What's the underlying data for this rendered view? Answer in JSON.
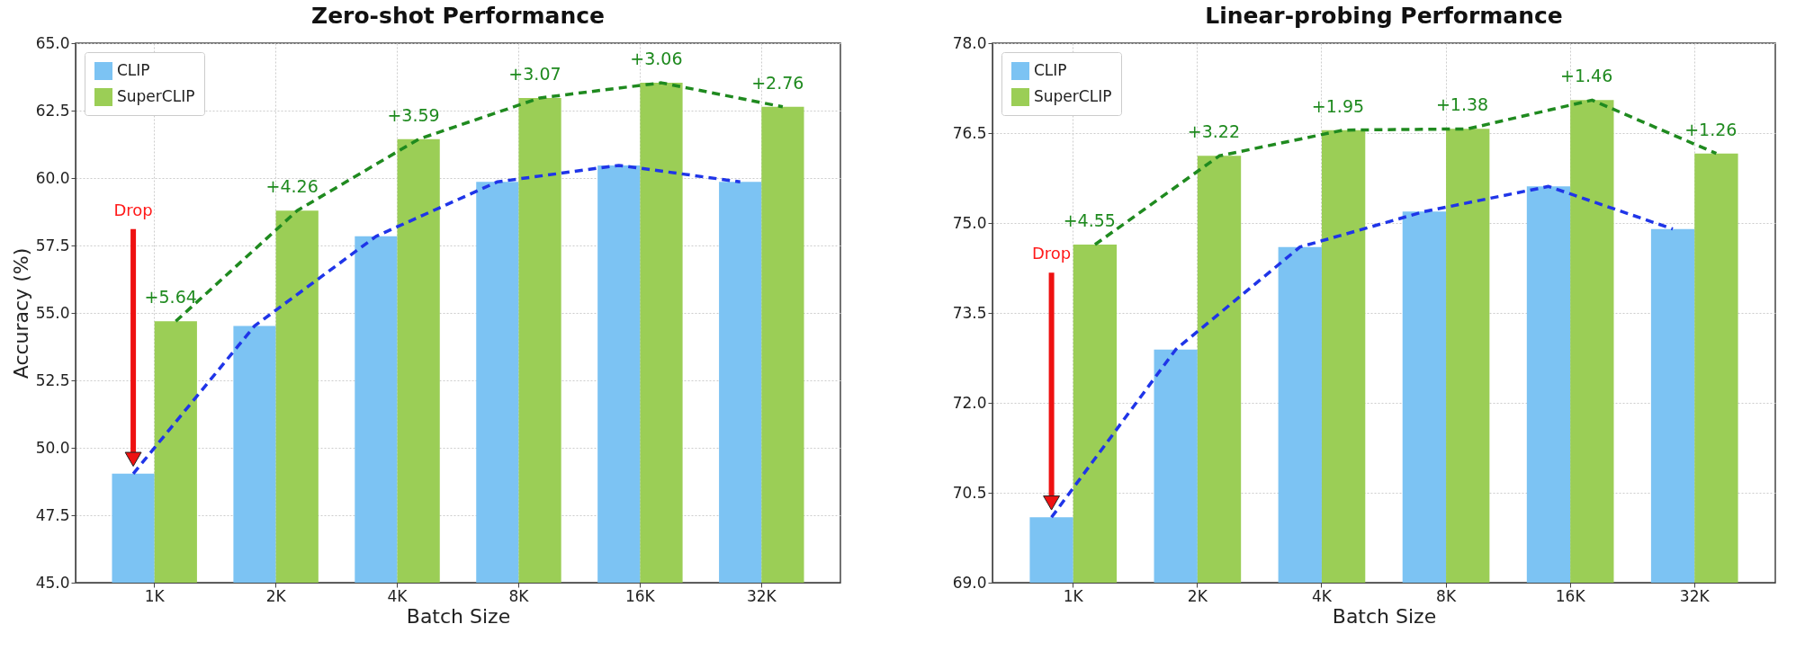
{
  "chart_data": [
    {
      "type": "bar",
      "title": "Zero-shot Performance",
      "xlabel": "Batch Size",
      "ylabel": "Accuracy (%)",
      "categories": [
        "1K",
        "2K",
        "4K",
        "8K",
        "16K",
        "32K"
      ],
      "series": [
        {
          "name": "CLIP",
          "color": "#7cc3f3",
          "values": [
            49.04,
            54.52,
            57.84,
            59.86,
            60.47,
            59.86
          ]
        },
        {
          "name": "SuperCLIP",
          "color": "#9bce56",
          "values": [
            54.69,
            58.79,
            61.44,
            62.97,
            63.53,
            62.64
          ]
        },
        {
          "type": "line",
          "color": "#1f35e8",
          "values": [
            49.04,
            54.52,
            57.84,
            59.86,
            60.47,
            59.86
          ]
        },
        {
          "type": "line",
          "color": "#1f8a1f",
          "values": [
            54.69,
            58.79,
            61.44,
            62.97,
            63.53,
            62.64
          ]
        }
      ],
      "line_style": "dashed",
      "ylim": [
        45,
        65
      ],
      "yticks": [
        {
          "value": 45,
          "label": "45.0"
        },
        {
          "value": 47.5,
          "label": "47.5"
        },
        {
          "value": 50,
          "label": "50.0"
        },
        {
          "value": 52.5,
          "label": "52.5"
        },
        {
          "value": 55,
          "label": "55.0"
        },
        {
          "value": 57.5,
          "label": "57.5"
        },
        {
          "value": 60,
          "label": "60.0"
        },
        {
          "value": 62.5,
          "label": "62.5"
        },
        {
          "value": 65,
          "label": "65.0"
        }
      ],
      "grid": true,
      "legend": "top left",
      "annotations": [
        "Drop",
        {
          "text": "+5.64",
          "x": "1K",
          "y": 54.69
        },
        {
          "text": "+4.26",
          "x": "2K",
          "y": 58.79
        },
        {
          "text": "+3.59",
          "x": "4K",
          "y": 61.44
        },
        {
          "text": "+3.07",
          "x": "8K",
          "y": 62.97
        },
        {
          "text": "+3.06",
          "x": "16K",
          "y": 63.53
        },
        {
          "text": "+2.76",
          "x": "32K",
          "y": 62.64
        }
      ]
    },
    {
      "type": "bar",
      "title": "Linear-probing Performance",
      "xlabel": "Batch Size",
      "categories": [
        "1K",
        "2K",
        "4K",
        "8K",
        "16K",
        "32K"
      ],
      "series": [
        {
          "name": "CLIP",
          "color": "#7cc3f3",
          "values": [
            70.09,
            72.89,
            74.6,
            75.19,
            75.61,
            74.9
          ]
        },
        {
          "name": "SuperCLIP",
          "color": "#9bce56",
          "values": [
            74.64,
            76.12,
            76.55,
            76.57,
            77.05,
            76.16
          ]
        },
        {
          "type": "line",
          "color": "#1f35e8",
          "values": [
            70.09,
            72.89,
            74.6,
            75.19,
            75.61,
            74.9
          ]
        },
        {
          "type": "line",
          "color": "#1f8a1f",
          "values": [
            74.64,
            76.12,
            76.55,
            76.57,
            77.05,
            76.16
          ]
        }
      ],
      "line_style": "dashed",
      "ylim": [
        69,
        78
      ],
      "yticks": [
        {
          "value": 69,
          "label": "69.0"
        },
        {
          "value": 70.5,
          "label": "70.5"
        },
        {
          "value": 72,
          "label": "72.0"
        },
        {
          "value": 73.5,
          "label": "73.5"
        },
        {
          "value": 75,
          "label": "75.0"
        },
        {
          "value": 76.5,
          "label": "76.5"
        },
        {
          "value": 78,
          "label": "78.0"
        }
      ],
      "grid": true,
      "legend": "top left",
      "annotations": [
        "Drop",
        {
          "text": "+4.55",
          "x": "1K",
          "y": 74.64
        },
        {
          "text": "+3.22",
          "x": "2K",
          "y": 76.12
        },
        {
          "text": "+1.95",
          "x": "4K",
          "y": 76.55
        },
        {
          "text": "+1.38",
          "x": "8K",
          "y": 76.57
        },
        {
          "text": "+1.46",
          "x": "16K",
          "y": 77.05
        },
        {
          "text": "+1.26",
          "x": "32K",
          "y": 76.16
        }
      ]
    }
  ]
}
